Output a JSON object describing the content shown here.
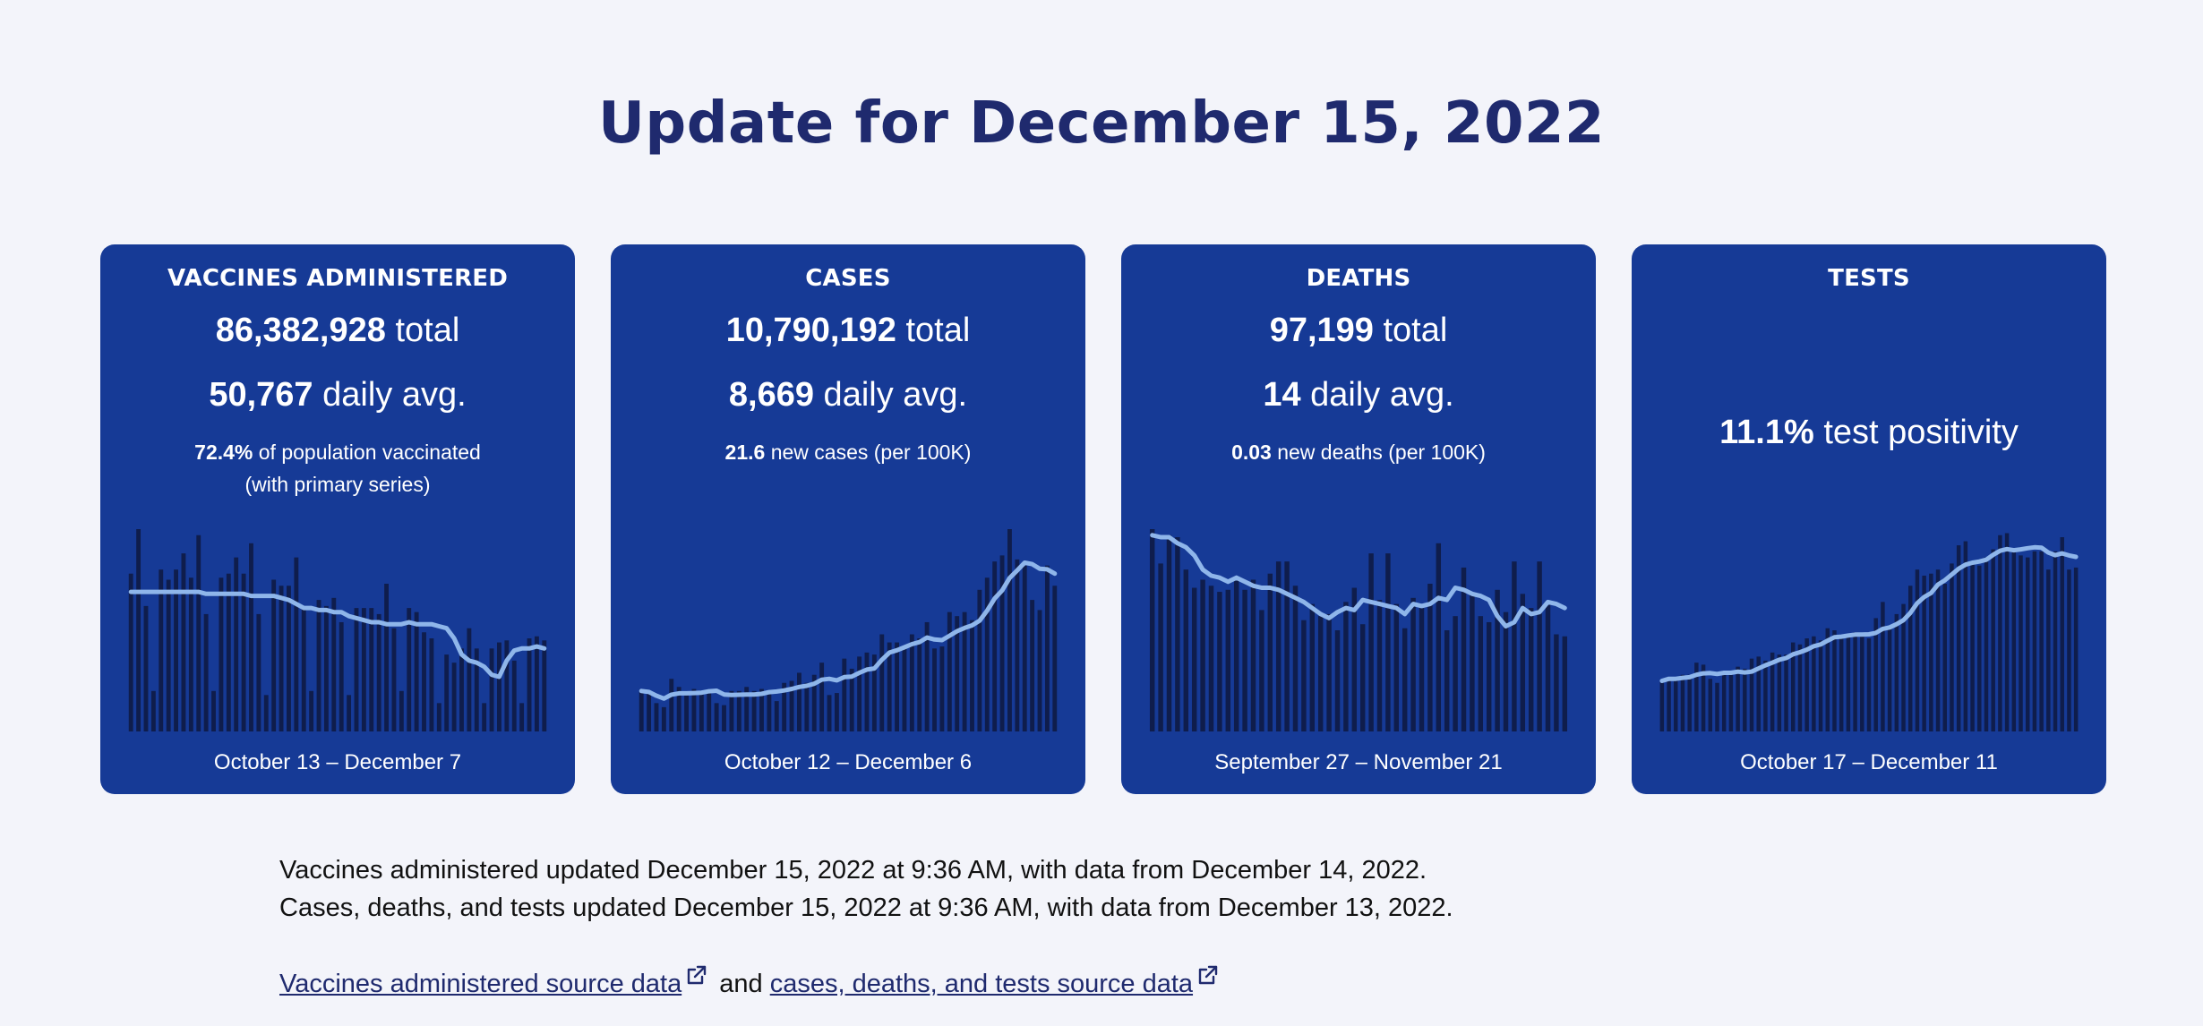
{
  "header": {
    "title": "Update for December 15, 2022"
  },
  "colors": {
    "card_bg": "#163a96",
    "bar": "#0f1d4c",
    "line": "#8fb6ea",
    "title": "#1f2a6e",
    "page_bg": "#f3f4fa"
  },
  "cards": [
    {
      "label": "VACCINES ADMINISTERED",
      "total_value": "86,382,928",
      "total_suffix": " total",
      "avg_value": "50,767",
      "avg_suffix": " daily avg.",
      "note_value": "72.4%",
      "note_text": " of population vaccinated",
      "note_line2": "(with primary series)",
      "date_range": "October 13 – December 7"
    },
    {
      "label": "CASES",
      "total_value": "10,790,192",
      "total_suffix": " total",
      "avg_value": "8,669",
      "avg_suffix": " daily avg.",
      "note_value": "21.6",
      "note_text": " new cases (per 100K)",
      "date_range": "October 12 – December 6"
    },
    {
      "label": "DEATHS",
      "total_value": "97,199",
      "total_suffix": " total",
      "avg_value": "14",
      "avg_suffix": " daily avg.",
      "note_value": "0.03",
      "note_text": " new deaths (per 100K)",
      "date_range": "September 27 – November 21"
    },
    {
      "label": "TESTS",
      "metric_value": "11.1%",
      "metric_suffix": " test positivity",
      "date_range": "October 17 – December 11"
    }
  ],
  "chart_data": [
    {
      "type": "bar",
      "name": "vaccines",
      "values": [
        0.78,
        1.0,
        0.62,
        0.2,
        0.8,
        0.75,
        0.8,
        0.88,
        0.76,
        0.97,
        0.58,
        0.2,
        0.76,
        0.78,
        0.86,
        0.78,
        0.93,
        0.58,
        0.18,
        0.75,
        0.72,
        0.72,
        0.86,
        0.62,
        0.2,
        0.65,
        0.62,
        0.66,
        0.54,
        0.18,
        0.61,
        0.61,
        0.61,
        0.58,
        0.73,
        0.51,
        0.2,
        0.61,
        0.59,
        0.49,
        0.46,
        0.14,
        0.38,
        0.34,
        0.41,
        0.51,
        0.41,
        0.14,
        0.41,
        0.44,
        0.45,
        0.35,
        0.14,
        0.46,
        0.47,
        0.45
      ],
      "trend": [
        0.69,
        0.69,
        0.69,
        0.69,
        0.69,
        0.69,
        0.69,
        0.69,
        0.69,
        0.69,
        0.68,
        0.68,
        0.68,
        0.68,
        0.68,
        0.68,
        0.67,
        0.67,
        0.67,
        0.67,
        0.66,
        0.65,
        0.63,
        0.61,
        0.61,
        0.6,
        0.6,
        0.59,
        0.59,
        0.57,
        0.56,
        0.55,
        0.54,
        0.54,
        0.53,
        0.53,
        0.53,
        0.54,
        0.53,
        0.53,
        0.53,
        0.52,
        0.51,
        0.46,
        0.38,
        0.35,
        0.34,
        0.32,
        0.28,
        0.27,
        0.35,
        0.4,
        0.41,
        0.41,
        0.42,
        0.41
      ]
    },
    {
      "type": "bar",
      "name": "cases",
      "values": [
        0.2,
        0.19,
        0.14,
        0.12,
        0.26,
        0.22,
        0.19,
        0.21,
        0.2,
        0.19,
        0.14,
        0.13,
        0.2,
        0.2,
        0.22,
        0.2,
        0.21,
        0.2,
        0.15,
        0.24,
        0.25,
        0.29,
        0.24,
        0.28,
        0.34,
        0.18,
        0.19,
        0.36,
        0.31,
        0.37,
        0.39,
        0.38,
        0.48,
        0.44,
        0.44,
        0.41,
        0.48,
        0.46,
        0.54,
        0.41,
        0.42,
        0.59,
        0.57,
        0.59,
        0.55,
        0.7,
        0.76,
        0.84,
        0.87,
        1.0,
        0.85,
        0.82,
        0.65,
        0.6,
        0.82,
        0.72
      ]
    },
    {
      "type": "bar",
      "name": "deaths",
      "values": [
        1.0,
        0.83,
        0.97,
        0.96,
        0.8,
        0.71,
        0.75,
        0.72,
        0.69,
        0.7,
        0.76,
        0.7,
        0.75,
        0.6,
        0.78,
        0.84,
        0.84,
        0.72,
        0.55,
        0.63,
        0.57,
        0.58,
        0.5,
        0.64,
        0.71,
        0.53,
        0.88,
        0.65,
        0.88,
        0.63,
        0.51,
        0.66,
        0.61,
        0.73,
        0.93,
        0.5,
        0.57,
        0.81,
        0.68,
        0.57,
        0.54,
        0.7,
        0.59,
        0.84,
        0.68,
        0.61,
        0.84,
        0.63,
        0.48,
        0.47
      ],
      "trend": [
        0.97,
        0.96,
        0.96,
        0.93,
        0.91,
        0.87,
        0.8,
        0.77,
        0.76,
        0.74,
        0.76,
        0.74,
        0.72,
        0.71,
        0.71,
        0.7,
        0.68,
        0.66,
        0.64,
        0.61,
        0.58,
        0.56,
        0.59,
        0.61,
        0.6,
        0.65,
        0.64,
        0.63,
        0.62,
        0.61,
        0.58,
        0.63,
        0.62,
        0.63,
        0.66,
        0.65,
        0.71,
        0.7,
        0.68,
        0.67,
        0.65,
        0.57,
        0.52,
        0.54,
        0.61,
        0.58,
        0.59,
        0.64,
        0.63,
        0.61
      ]
    },
    {
      "type": "bar",
      "name": "tests",
      "values": [
        0.25,
        0.27,
        0.26,
        0.28,
        0.28,
        0.34,
        0.33,
        0.26,
        0.24,
        0.3,
        0.28,
        0.32,
        0.31,
        0.36,
        0.37,
        0.35,
        0.39,
        0.38,
        0.38,
        0.44,
        0.43,
        0.46,
        0.47,
        0.45,
        0.51,
        0.5,
        0.46,
        0.47,
        0.49,
        0.47,
        0.46,
        0.56,
        0.64,
        0.51,
        0.58,
        0.63,
        0.72,
        0.8,
        0.77,
        0.78,
        0.8,
        0.73,
        0.83,
        0.92,
        0.94,
        0.84,
        0.82,
        0.86,
        0.9,
        0.97,
        0.98,
        0.9,
        0.87,
        0.86,
        0.89,
        0.89,
        0.8,
        0.89,
        0.96,
        0.8,
        0.81
      ]
    }
  ],
  "footnotes": {
    "line1": "Vaccines administered updated December 15, 2022 at 9:36 AM, with data from December 14, 2022.",
    "line2": "Cases, deaths, and tests updated December 15, 2022 at 9:36 AM, with data from December 13, 2022."
  },
  "links": {
    "vaccines_link": "Vaccines administered source data",
    "joiner": " and ",
    "cases_link": "cases, deaths, and tests source data"
  }
}
